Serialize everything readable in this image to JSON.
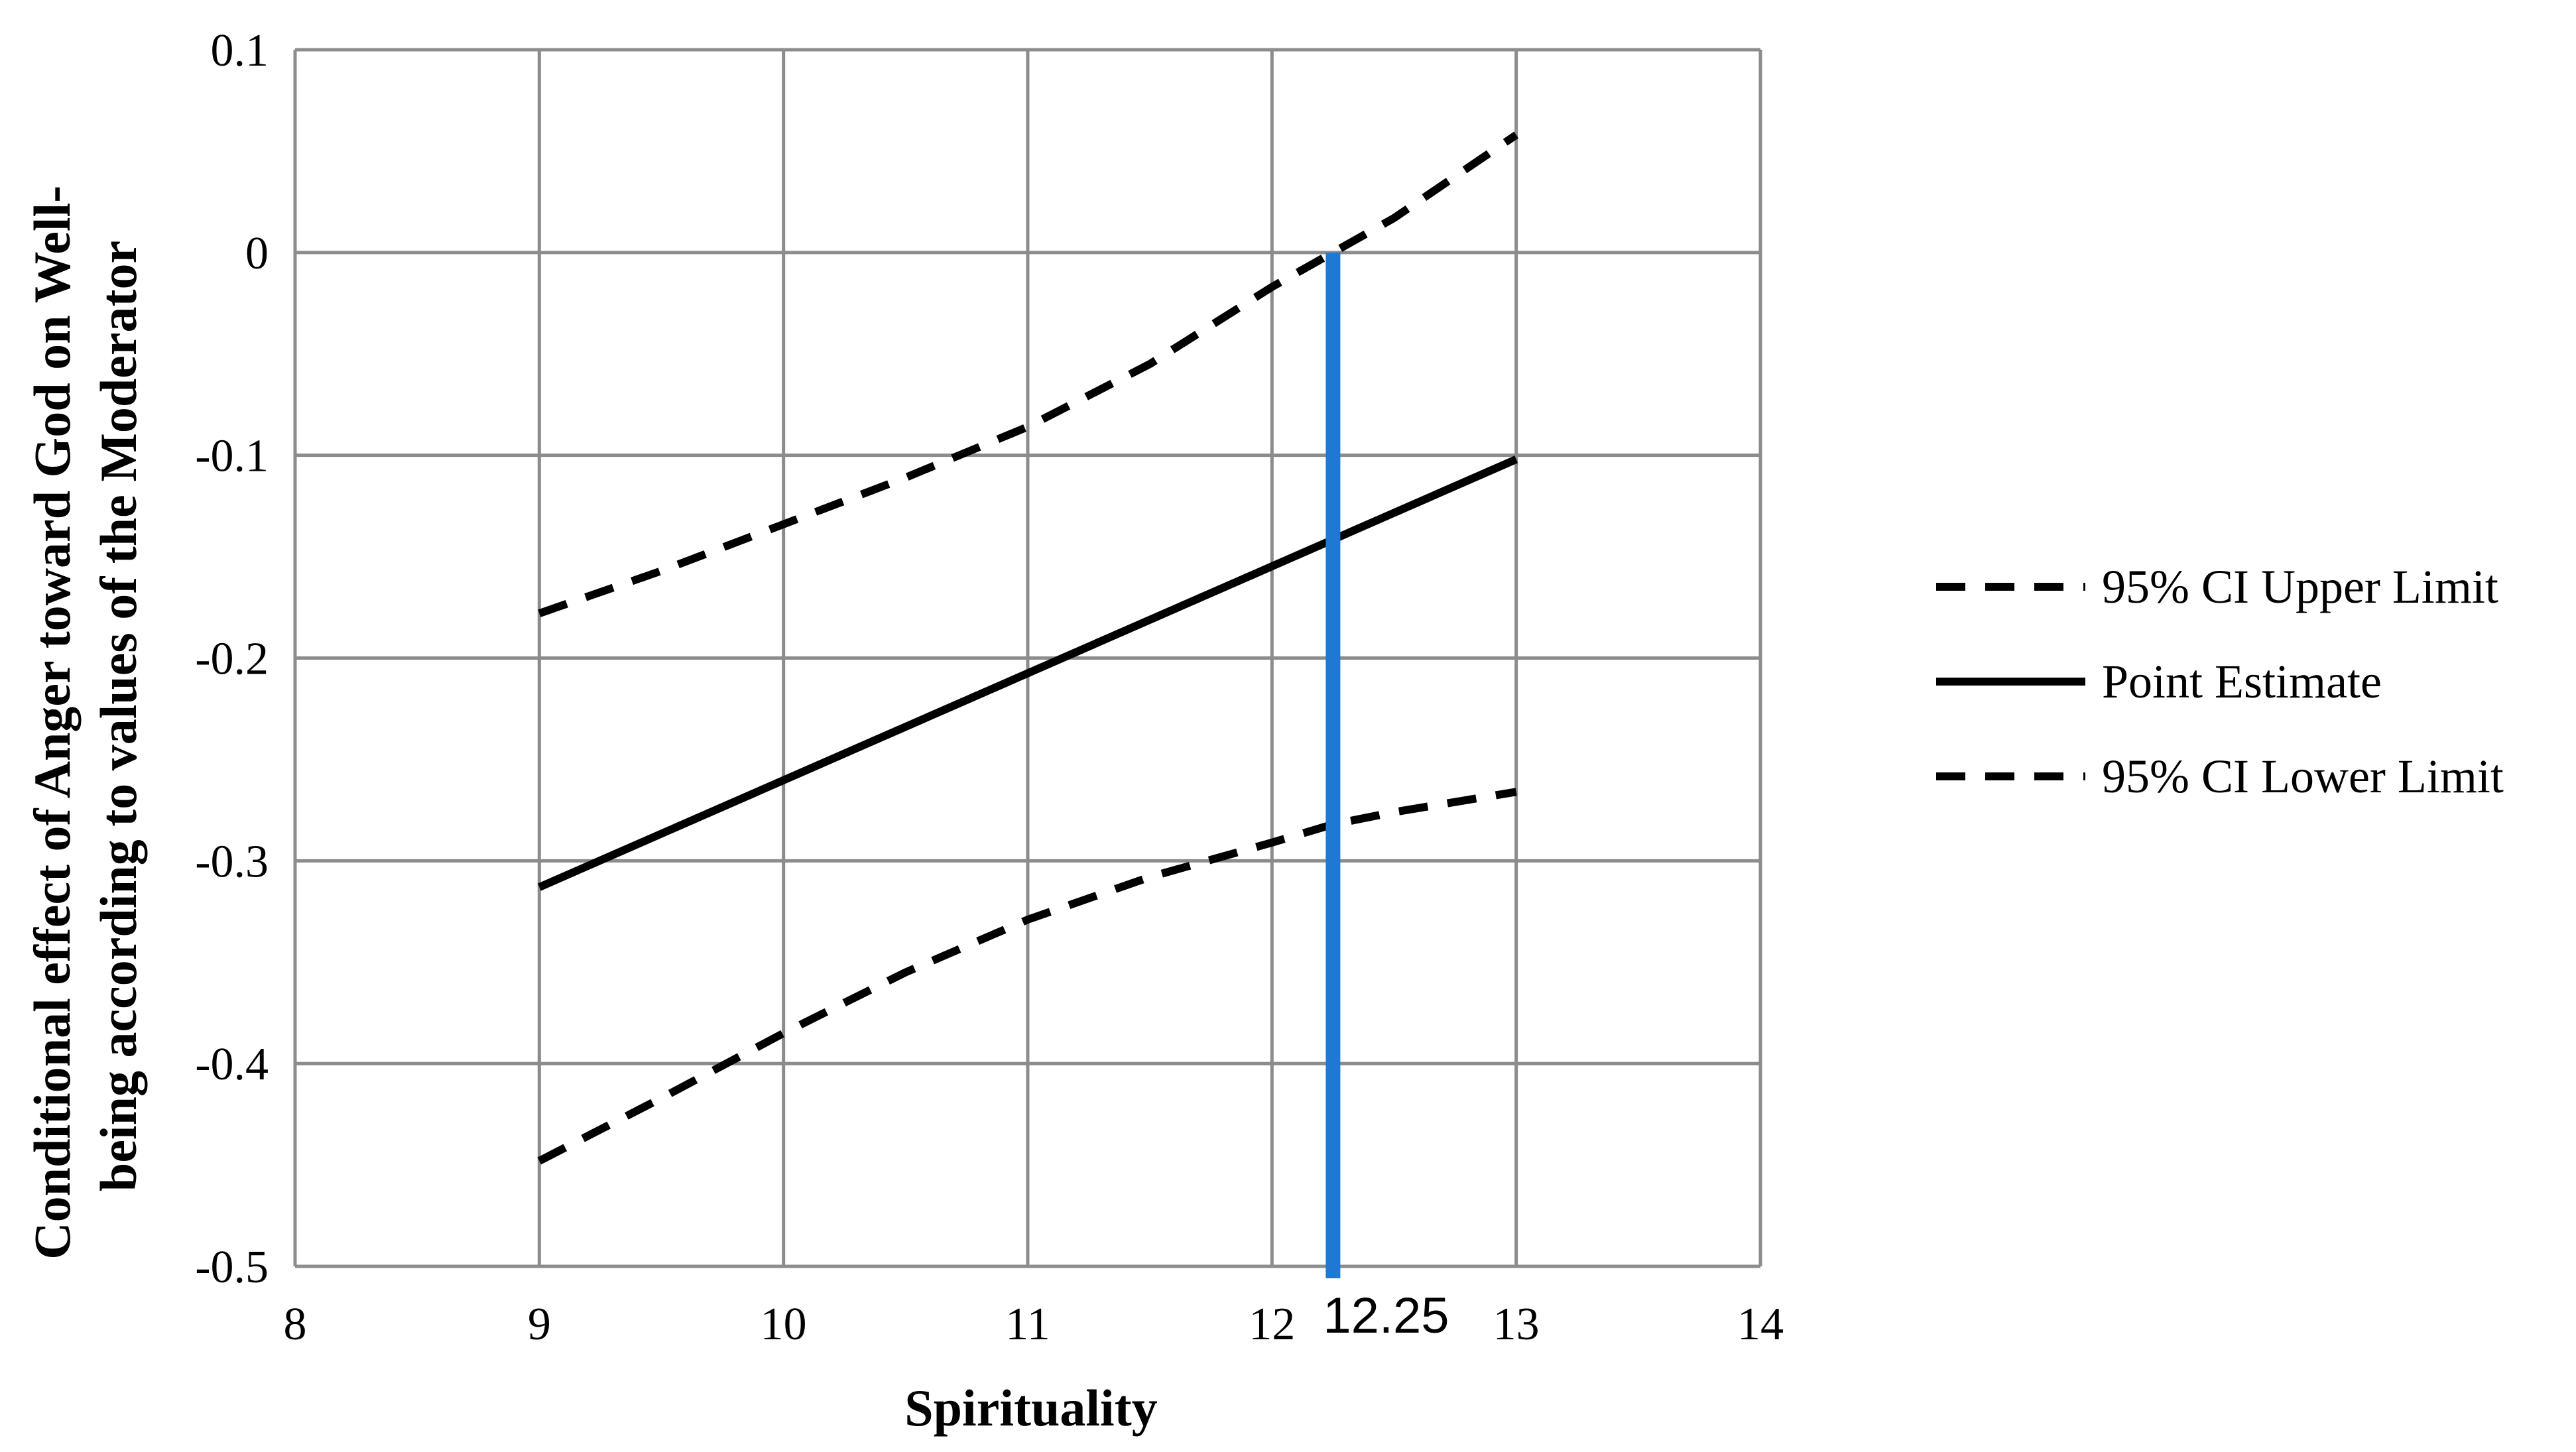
{
  "chart_data": {
    "type": "line",
    "title": "",
    "xlabel": "Spirituality",
    "ylabel": [
      "Conditional effect of Anger toward God on Well-",
      "being according to values of the Moderator"
    ],
    "xlim": [
      8,
      14
    ],
    "ylim": [
      -0.5,
      0.1
    ],
    "x_ticks": [
      8,
      9,
      10,
      11,
      12,
      13,
      14
    ],
    "y_ticks": [
      0.1,
      0,
      -0.1,
      -0.2,
      -0.3,
      -0.4,
      -0.5
    ],
    "x_tick_labels": [
      "8",
      "9",
      "10",
      "11",
      "12",
      "13",
      "14"
    ],
    "y_tick_labels": [
      "0.1",
      "0",
      "-0.1",
      "-0.2",
      "-0.3",
      "-0.4",
      "-0.5"
    ],
    "grid": true,
    "legend_position": "right",
    "series": [
      {
        "name": "95% CI Upper Limit",
        "style": "dashed",
        "color": "#000000",
        "x": [
          9,
          9.5,
          10,
          10.5,
          11,
          11.5,
          12,
          12.25,
          12.5,
          13
        ],
        "y": [
          -0.178,
          -0.157,
          -0.134,
          -0.111,
          -0.086,
          -0.055,
          -0.017,
          0.0,
          0.017,
          0.058
        ]
      },
      {
        "name": "Point Estimate",
        "style": "solid",
        "color": "#000000",
        "x": [
          9,
          13
        ],
        "y": [
          -0.313,
          -0.102
        ]
      },
      {
        "name": "95% CI Lower Limit",
        "style": "dashed",
        "color": "#000000",
        "x": [
          9,
          9.5,
          10,
          10.5,
          11,
          11.5,
          12,
          12.25,
          12.5,
          13
        ],
        "y": [
          -0.448,
          -0.417,
          -0.385,
          -0.355,
          -0.329,
          -0.308,
          -0.291,
          -0.282,
          -0.276,
          -0.266
        ]
      }
    ],
    "annotations": [
      {
        "type": "vertical-line",
        "x": 12.25,
        "color": "#1f78d1",
        "label": "12.25"
      }
    ]
  }
}
